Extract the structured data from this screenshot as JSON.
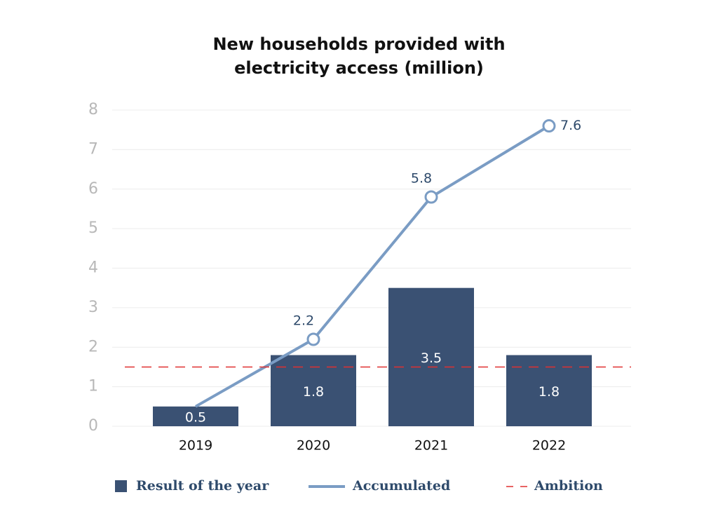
{
  "chart_data": {
    "type": "combo",
    "title": "New households provided with electricity access (million)",
    "categories": [
      "2019",
      "2020",
      "2021",
      "2022"
    ],
    "series": [
      {
        "name": "Result of the year",
        "type": "bar",
        "color": "#3a5173",
        "values": [
          0.5,
          1.8,
          3.5,
          1.8
        ]
      },
      {
        "name": "Accumulated",
        "type": "line",
        "color": "#7a9cc4",
        "values": [
          0.5,
          2.2,
          5.8,
          7.6
        ],
        "value_labels": [
          null,
          "2.2",
          "5.8",
          "7.6"
        ]
      }
    ],
    "reference_line": {
      "name": "Ambition",
      "value": 1.5,
      "color": "#e03030"
    },
    "ylim": [
      0,
      8
    ],
    "yticks": [
      0,
      1,
      2,
      3,
      4,
      5,
      6,
      7,
      8
    ],
    "grid": true
  }
}
